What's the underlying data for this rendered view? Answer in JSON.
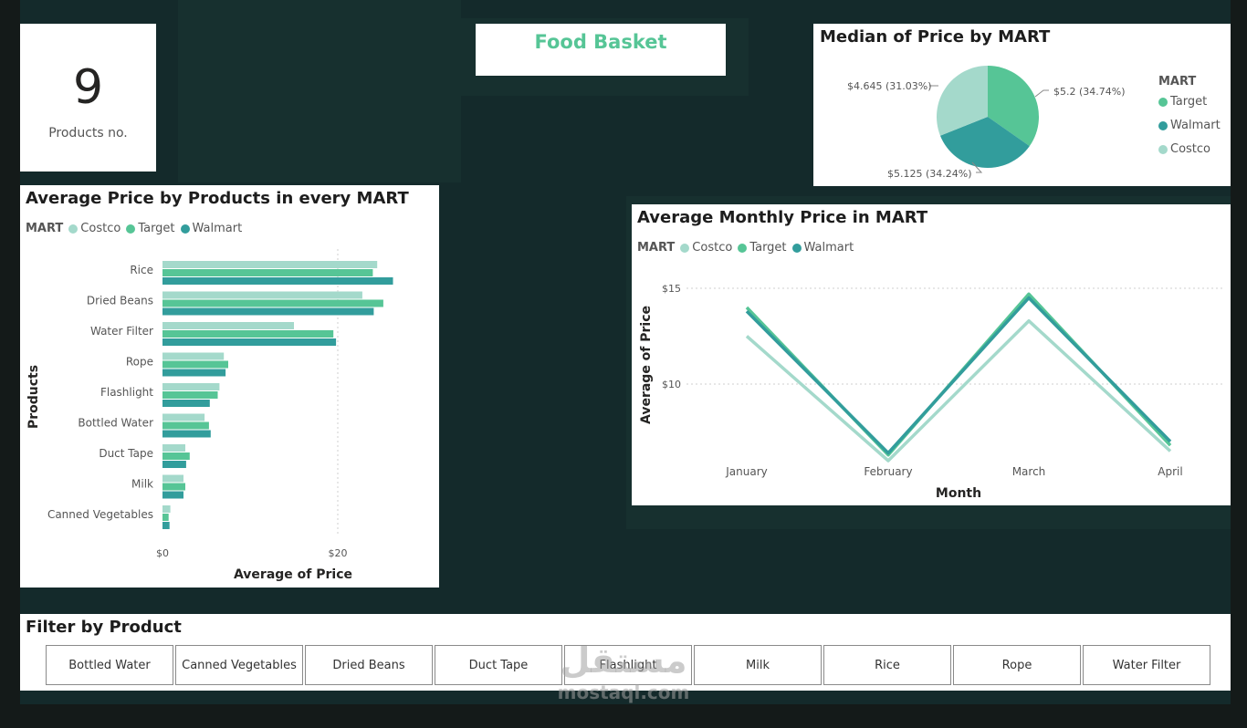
{
  "kpi": {
    "value": "9",
    "label": "Products no."
  },
  "header": {
    "title": "Food Basket"
  },
  "colors": {
    "target": "#56c596",
    "walmart": "#329d9c",
    "costco": "#a4d9cb"
  },
  "pie": {
    "title": "Median of Price by MART",
    "legend_title": "MART",
    "legend": [
      "Target",
      "Walmart",
      "Costco"
    ],
    "labels": {
      "target": "$5.2 (34.74%)",
      "walmart": "$5.125 (34.24%)",
      "costco": "$4.645 (31.03%)"
    }
  },
  "bar": {
    "title": "Average Price by Products in every MART",
    "legend_title": "MART",
    "legend": [
      "Costco",
      "Target",
      "Walmart"
    ],
    "xlabel": "Average of Price",
    "ylabel": "Products",
    "ticks": [
      "$0",
      "$20"
    ]
  },
  "line": {
    "title": "Average Monthly Price in MART",
    "legend_title": "MART",
    "legend": [
      "Costco",
      "Target",
      "Walmart"
    ],
    "xlabel": "Month",
    "ylabel": "Average of Price",
    "yticks": [
      "$15",
      "$10"
    ]
  },
  "filter": {
    "title": "Filter by Product",
    "options": [
      "Bottled Water",
      "Canned Vegetables",
      "Dried Beans",
      "Duct Tape",
      "Flashlight",
      "Milk",
      "Rice",
      "Rope",
      "Water Filter"
    ]
  },
  "watermark": {
    "arabic": "مستقل",
    "latin": "mostaql.com"
  },
  "chart_data": [
    {
      "type": "pie",
      "title": "Median of Price by MART",
      "categories": [
        "Target",
        "Walmart",
        "Costco"
      ],
      "values": [
        5.2,
        5.125,
        4.645
      ],
      "percent": [
        34.74,
        34.24,
        31.03
      ],
      "legend_position": "right"
    },
    {
      "type": "bar",
      "orientation": "horizontal",
      "title": "Average Price by Products in every MART",
      "xlabel": "Average of Price",
      "ylabel": "Products",
      "categories": [
        "Rice",
        "Dried Beans",
        "Water Filter",
        "Rope",
        "Flashlight",
        "Bottled Water",
        "Duct Tape",
        "Milk",
        "Canned Vegetables"
      ],
      "series": [
        {
          "name": "Costco",
          "values": [
            24.5,
            22.8,
            15.0,
            7.0,
            6.5,
            4.8,
            2.6,
            2.4,
            0.9
          ]
        },
        {
          "name": "Target",
          "values": [
            24.0,
            25.2,
            19.5,
            7.5,
            6.3,
            5.3,
            3.1,
            2.6,
            0.7
          ]
        },
        {
          "name": "Walmart",
          "values": [
            26.3,
            24.1,
            19.8,
            7.2,
            5.4,
            5.5,
            2.7,
            2.4,
            0.8
          ]
        }
      ],
      "xlim": [
        0,
        31
      ],
      "grid": true,
      "legend_position": "top-left"
    },
    {
      "type": "line",
      "title": "Average Monthly Price in MART",
      "xlabel": "Month",
      "ylabel": "Average of Price",
      "x": [
        "January",
        "February",
        "March",
        "April"
      ],
      "series": [
        {
          "name": "Costco",
          "values": [
            12.5,
            6.0,
            13.3,
            6.5
          ]
        },
        {
          "name": "Target",
          "values": [
            14.0,
            6.3,
            14.7,
            6.8
          ]
        },
        {
          "name": "Walmart",
          "values": [
            13.8,
            6.4,
            14.5,
            7.0
          ]
        }
      ],
      "ylim": [
        6,
        16
      ],
      "grid": true,
      "legend_position": "top-left"
    }
  ]
}
